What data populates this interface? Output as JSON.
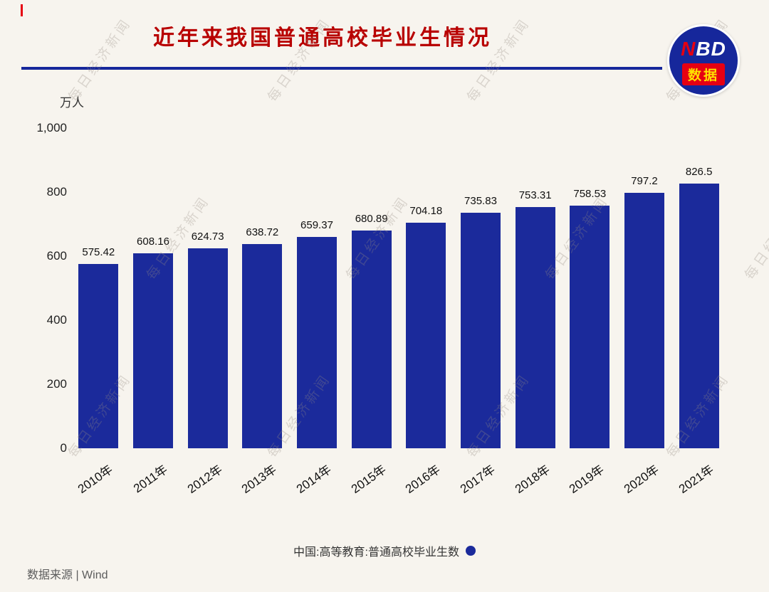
{
  "page": {
    "background": "#f7f4ee",
    "watermark_text": "每日经济新闻"
  },
  "header": {
    "title": "近年来我国普通高校毕业生情况",
    "title_color": "#b80000",
    "underline_color": "#16279b",
    "accent_color": "#e60012",
    "logo": {
      "red_letter": "N",
      "white_letters": "BD",
      "subtitle": "数据"
    }
  },
  "chart_data": {
    "type": "bar",
    "title": "近年来我国普通高校毕业生情况",
    "unit_label": "万人",
    "categories": [
      "2010年",
      "2011年",
      "2012年",
      "2013年",
      "2014年",
      "2015年",
      "2016年",
      "2017年",
      "2018年",
      "2019年",
      "2020年",
      "2021年"
    ],
    "values": [
      575.42,
      608.16,
      624.73,
      638.72,
      659.37,
      680.89,
      704.18,
      735.83,
      753.31,
      758.53,
      797.2,
      826.5
    ],
    "value_labels": [
      "575.42",
      "608.16",
      "624.73",
      "638.72",
      "659.37",
      "680.89",
      "704.18",
      "735.83",
      "753.31",
      "758.53",
      "797.2",
      "826.5"
    ],
    "ylim": [
      0,
      1000
    ],
    "yticks": [
      0,
      200,
      400,
      600,
      800,
      1000
    ],
    "ytick_labels": [
      "0",
      "200",
      "400",
      "600",
      "800",
      "1,000"
    ],
    "bar_color": "#1b2a9b",
    "grid": false,
    "legend": {
      "label": "中国:高等教育:普通高校毕业生数",
      "marker": "dot",
      "marker_color": "#1b2a9b",
      "position": "bottom-center"
    }
  },
  "footer": {
    "source": "数据来源 | Wind"
  }
}
